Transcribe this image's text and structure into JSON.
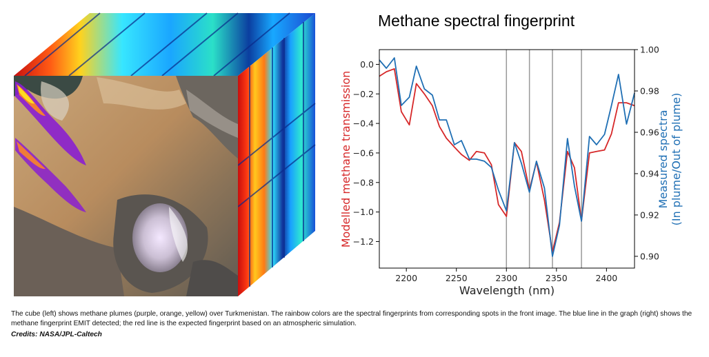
{
  "figure": {
    "caption": "The cube (left) shows methane plumes (purple, orange, yellow) over Turkmenistan. The rainbow colors are the spectral fingerprints from corresponding spots in the front image. The blue line in the graph (right) shows the methane fingerprint EMIT detected; the red line is the expected fingerprint based on an atmospheric simulation.",
    "credits": "Credits: NASA/JPL-Caltech"
  },
  "chart_data": {
    "type": "line",
    "title": "Methane spectral fingerprint",
    "xlabel": "Wavelength (nm)",
    "ylabel_left": "Modelled methane transmission",
    "ylabel_right_line1": "Measured spectra",
    "ylabel_right_line2": "(In plume/Out of plume)",
    "xlim": [
      2173,
      2428
    ],
    "ylim_left": [
      -1.38,
      0.1
    ],
    "ylim_right": [
      0.8943,
      1.0
    ],
    "x_ticks": [
      2200,
      2250,
      2300,
      2350,
      2400
    ],
    "y_ticks_left": [
      0.0,
      -0.2,
      -0.4,
      -0.6,
      -0.8,
      -1.0,
      -1.2
    ],
    "y_ticks_left_labels": [
      "0.0",
      "−0.2",
      "−0.4",
      "−0.6",
      "−0.8",
      "−1.0",
      "−1.2"
    ],
    "y_ticks_right": [
      0.9,
      0.92,
      0.94,
      0.96,
      0.98,
      1.0
    ],
    "y_ticks_right_labels": [
      "0.90",
      "0.92",
      "0.94",
      "0.96",
      "0.98",
      "1.00"
    ],
    "vertical_lines": [
      2300,
      2323,
      2346,
      2375
    ],
    "colors": {
      "modelled": "#d62728",
      "measured": "#1f6fb4",
      "vlines": "#999999"
    },
    "series": [
      {
        "axis": "left",
        "x": [
          2173,
          2180,
          2188,
          2195,
          2203,
          2210,
          2218,
          2226,
          2233,
          2240,
          2248,
          2255,
          2263,
          2270,
          2278,
          2285,
          2292,
          2300,
          2308,
          2315,
          2323,
          2330,
          2338,
          2346,
          2353,
          2361,
          2368,
          2375,
          2383,
          2390,
          2398,
          2405,
          2412,
          2420,
          2428
        ],
        "values": [
          -0.08,
          -0.05,
          -0.03,
          -0.32,
          -0.41,
          -0.13,
          -0.2,
          -0.28,
          -0.42,
          -0.5,
          -0.56,
          -0.61,
          -0.65,
          -0.59,
          -0.6,
          -0.68,
          -0.95,
          -1.03,
          -0.53,
          -0.59,
          -0.85,
          -0.66,
          -0.92,
          -1.27,
          -1.07,
          -0.59,
          -0.7,
          -1.06,
          -0.6,
          -0.59,
          -0.58,
          -0.47,
          -0.26,
          -0.26,
          -0.28
        ]
      },
      {
        "axis": "right",
        "x": [
          2173,
          2180,
          2188,
          2195,
          2203,
          2210,
          2218,
          2226,
          2233,
          2240,
          2248,
          2255,
          2263,
          2270,
          2278,
          2285,
          2292,
          2300,
          2308,
          2315,
          2323,
          2330,
          2338,
          2346,
          2353,
          2361,
          2368,
          2375,
          2383,
          2390,
          2398,
          2405,
          2412,
          2420,
          2428
        ],
        "values": [
          0.995,
          0.991,
          0.996,
          0.973,
          0.977,
          0.992,
          0.981,
          0.978,
          0.966,
          0.966,
          0.954,
          0.956,
          0.947,
          0.947,
          0.946,
          0.943,
          0.932,
          0.922,
          0.955,
          0.945,
          0.931,
          0.946,
          0.933,
          0.9,
          0.915,
          0.957,
          0.934,
          0.917,
          0.958,
          0.954,
          0.959,
          0.973,
          0.988,
          0.964,
          0.979
        ]
      }
    ]
  }
}
